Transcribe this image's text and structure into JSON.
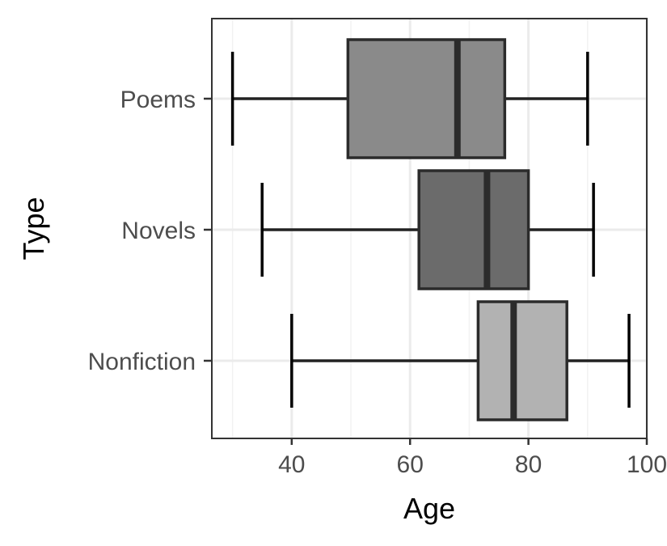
{
  "chart_data": {
    "type": "boxplot",
    "orientation": "horizontal",
    "xlabel": "Age",
    "ylabel": "Type",
    "xlim": [
      26.5,
      100
    ],
    "x_ticks": [
      40,
      60,
      80,
      100
    ],
    "grid": true,
    "categories": [
      "Poems",
      "Novels",
      "Nonfiction"
    ],
    "boxes": [
      {
        "category": "Poems",
        "whisker_low": 30,
        "q1": 49.5,
        "median": 68,
        "q3": 76,
        "whisker_high": 90,
        "fill": "#8a8a8a"
      },
      {
        "category": "Novels",
        "whisker_low": 35,
        "q1": 61.5,
        "median": 73,
        "q3": 80,
        "whisker_high": 91,
        "fill": "#6b6b6b"
      },
      {
        "category": "Nonfiction",
        "whisker_low": 40,
        "q1": 71.5,
        "median": 77.5,
        "q3": 86.5,
        "whisker_high": 97,
        "fill": "#b2b2b2"
      }
    ]
  }
}
